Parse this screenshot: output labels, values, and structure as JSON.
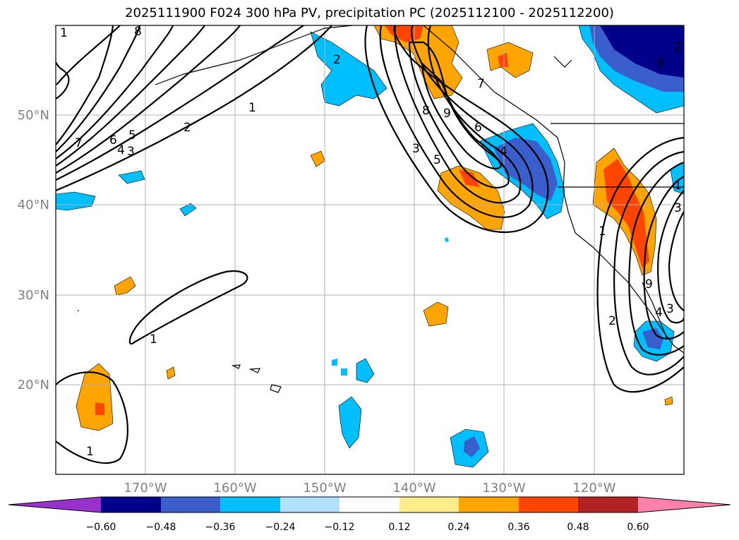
{
  "title": "2025111900 F024 300 hPa PV, precipitation PC (2025112100 - 2025112200)",
  "lat_labels": [
    "50°N",
    "40°N",
    "30°N",
    "20°N"
  ],
  "lon_labels": [
    "170°W",
    "160°W",
    "150°W",
    "140°W",
    "130°W",
    "120°W"
  ],
  "colorbar": {
    "ticks": [
      "−0.60",
      "−0.48",
      "−0.36",
      "−0.24",
      "−0.12",
      "0.12",
      "0.24",
      "0.36",
      "0.48",
      "0.60"
    ],
    "colors": [
      "#9932cc",
      "#00008b",
      "#3a5fcd",
      "#00bfff",
      "#b0e2ff",
      "#ffffff",
      "#ffec8b",
      "#ffa500",
      "#ff4500",
      "#b22222",
      "#ff82ab"
    ]
  },
  "contour_labels": [
    {
      "text": "1"
    },
    {
      "text": "2"
    },
    {
      "text": "3"
    },
    {
      "text": "4"
    },
    {
      "text": "5"
    },
    {
      "text": "6"
    },
    {
      "text": "7"
    },
    {
      "text": "8"
    },
    {
      "text": "1"
    },
    {
      "text": "2"
    },
    {
      "text": "8"
    },
    {
      "text": "9"
    },
    {
      "text": "6"
    },
    {
      "text": "3"
    },
    {
      "text": "5"
    },
    {
      "text": "1"
    },
    {
      "text": "1"
    },
    {
      "text": "1"
    },
    {
      "text": "2"
    },
    {
      "text": "3"
    },
    {
      "text": "4"
    },
    {
      "text": "9"
    },
    {
      "text": "1"
    },
    {
      "text": "2"
    },
    {
      "text": "3"
    },
    {
      "text": "7"
    },
    {
      "text": "9"
    },
    {
      "text": "4"
    }
  ]
}
